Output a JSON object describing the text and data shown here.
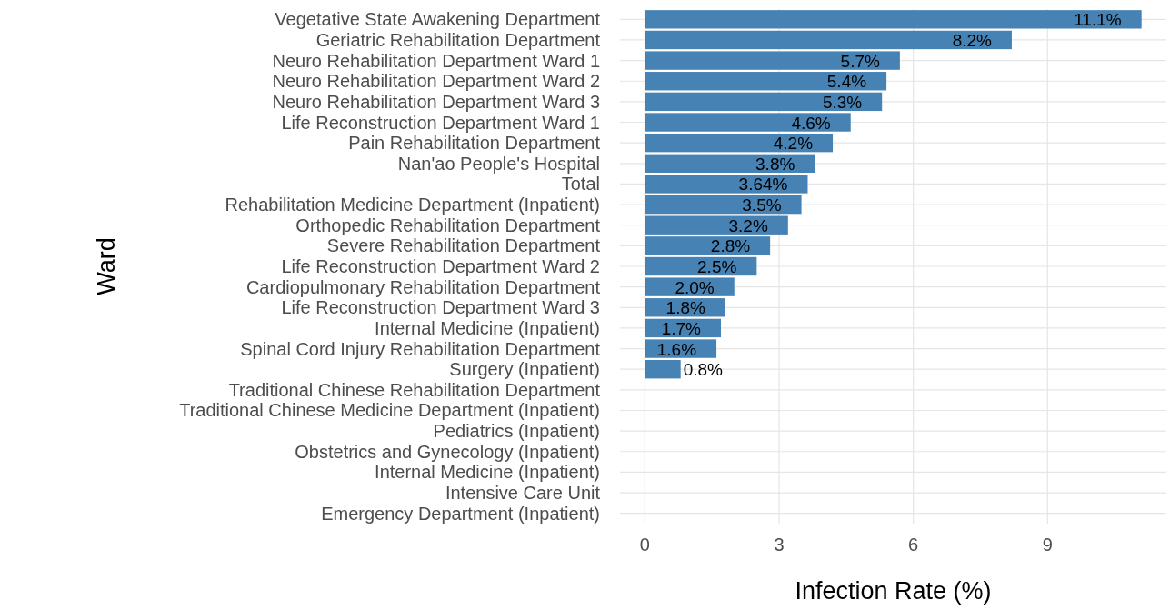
{
  "chart_data": {
    "type": "bar",
    "orientation": "horizontal",
    "xlabel": "Infection Rate (%)",
    "ylabel": "Ward",
    "categories": [
      "Vegetative State Awakening Department",
      "Geriatric Rehabilitation Department",
      "Neuro Rehabilitation Department Ward 1",
      "Neuro Rehabilitation Department Ward 2",
      "Neuro Rehabilitation Department Ward 3",
      "Life Reconstruction Department Ward 1",
      "Pain Rehabilitation Department",
      "Nan'ao People's Hospital",
      "Total",
      "Rehabilitation Medicine Department (Inpatient)",
      "Orthopedic Rehabilitation Department",
      "Severe Rehabilitation Department",
      "Life Reconstruction Department Ward 2",
      "Cardiopulmonary Rehabilitation Department",
      "Life Reconstruction Department Ward 3",
      "Internal Medicine (Inpatient)",
      "Spinal Cord Injury Rehabilitation Department",
      "Surgery (Inpatient)",
      "Traditional Chinese Rehabilitation Department",
      "Traditional Chinese Medicine Department (Inpatient)",
      "Pediatrics (Inpatient)",
      "Obstetrics and Gynecology (Inpatient)",
      "Internal Medicine (Inpatient)",
      "Intensive Care Unit",
      "Emergency Department (Inpatient)"
    ],
    "values": [
      11.1,
      8.2,
      5.7,
      5.4,
      5.3,
      4.6,
      4.2,
      3.8,
      3.64,
      3.5,
      3.2,
      2.8,
      2.5,
      2.0,
      1.8,
      1.7,
      1.6,
      0.8,
      0,
      0,
      0,
      0,
      0,
      0,
      0
    ],
    "value_labels": [
      "11.1%",
      "8.2%",
      "5.7%",
      "5.4%",
      "5.3%",
      "4.6%",
      "4.2%",
      "3.8%",
      "3.64%",
      "3.5%",
      "3.2%",
      "2.8%",
      "2.5%",
      "2.0%",
      "1.8%",
      "1.7%",
      "1.6%",
      "0.8%",
      null,
      null,
      null,
      null,
      null,
      null,
      null
    ],
    "color": "#4682b4",
    "xlim": [
      -0.555,
      11.655
    ],
    "xticks": [
      0,
      3,
      6,
      9
    ],
    "grid": true
  }
}
